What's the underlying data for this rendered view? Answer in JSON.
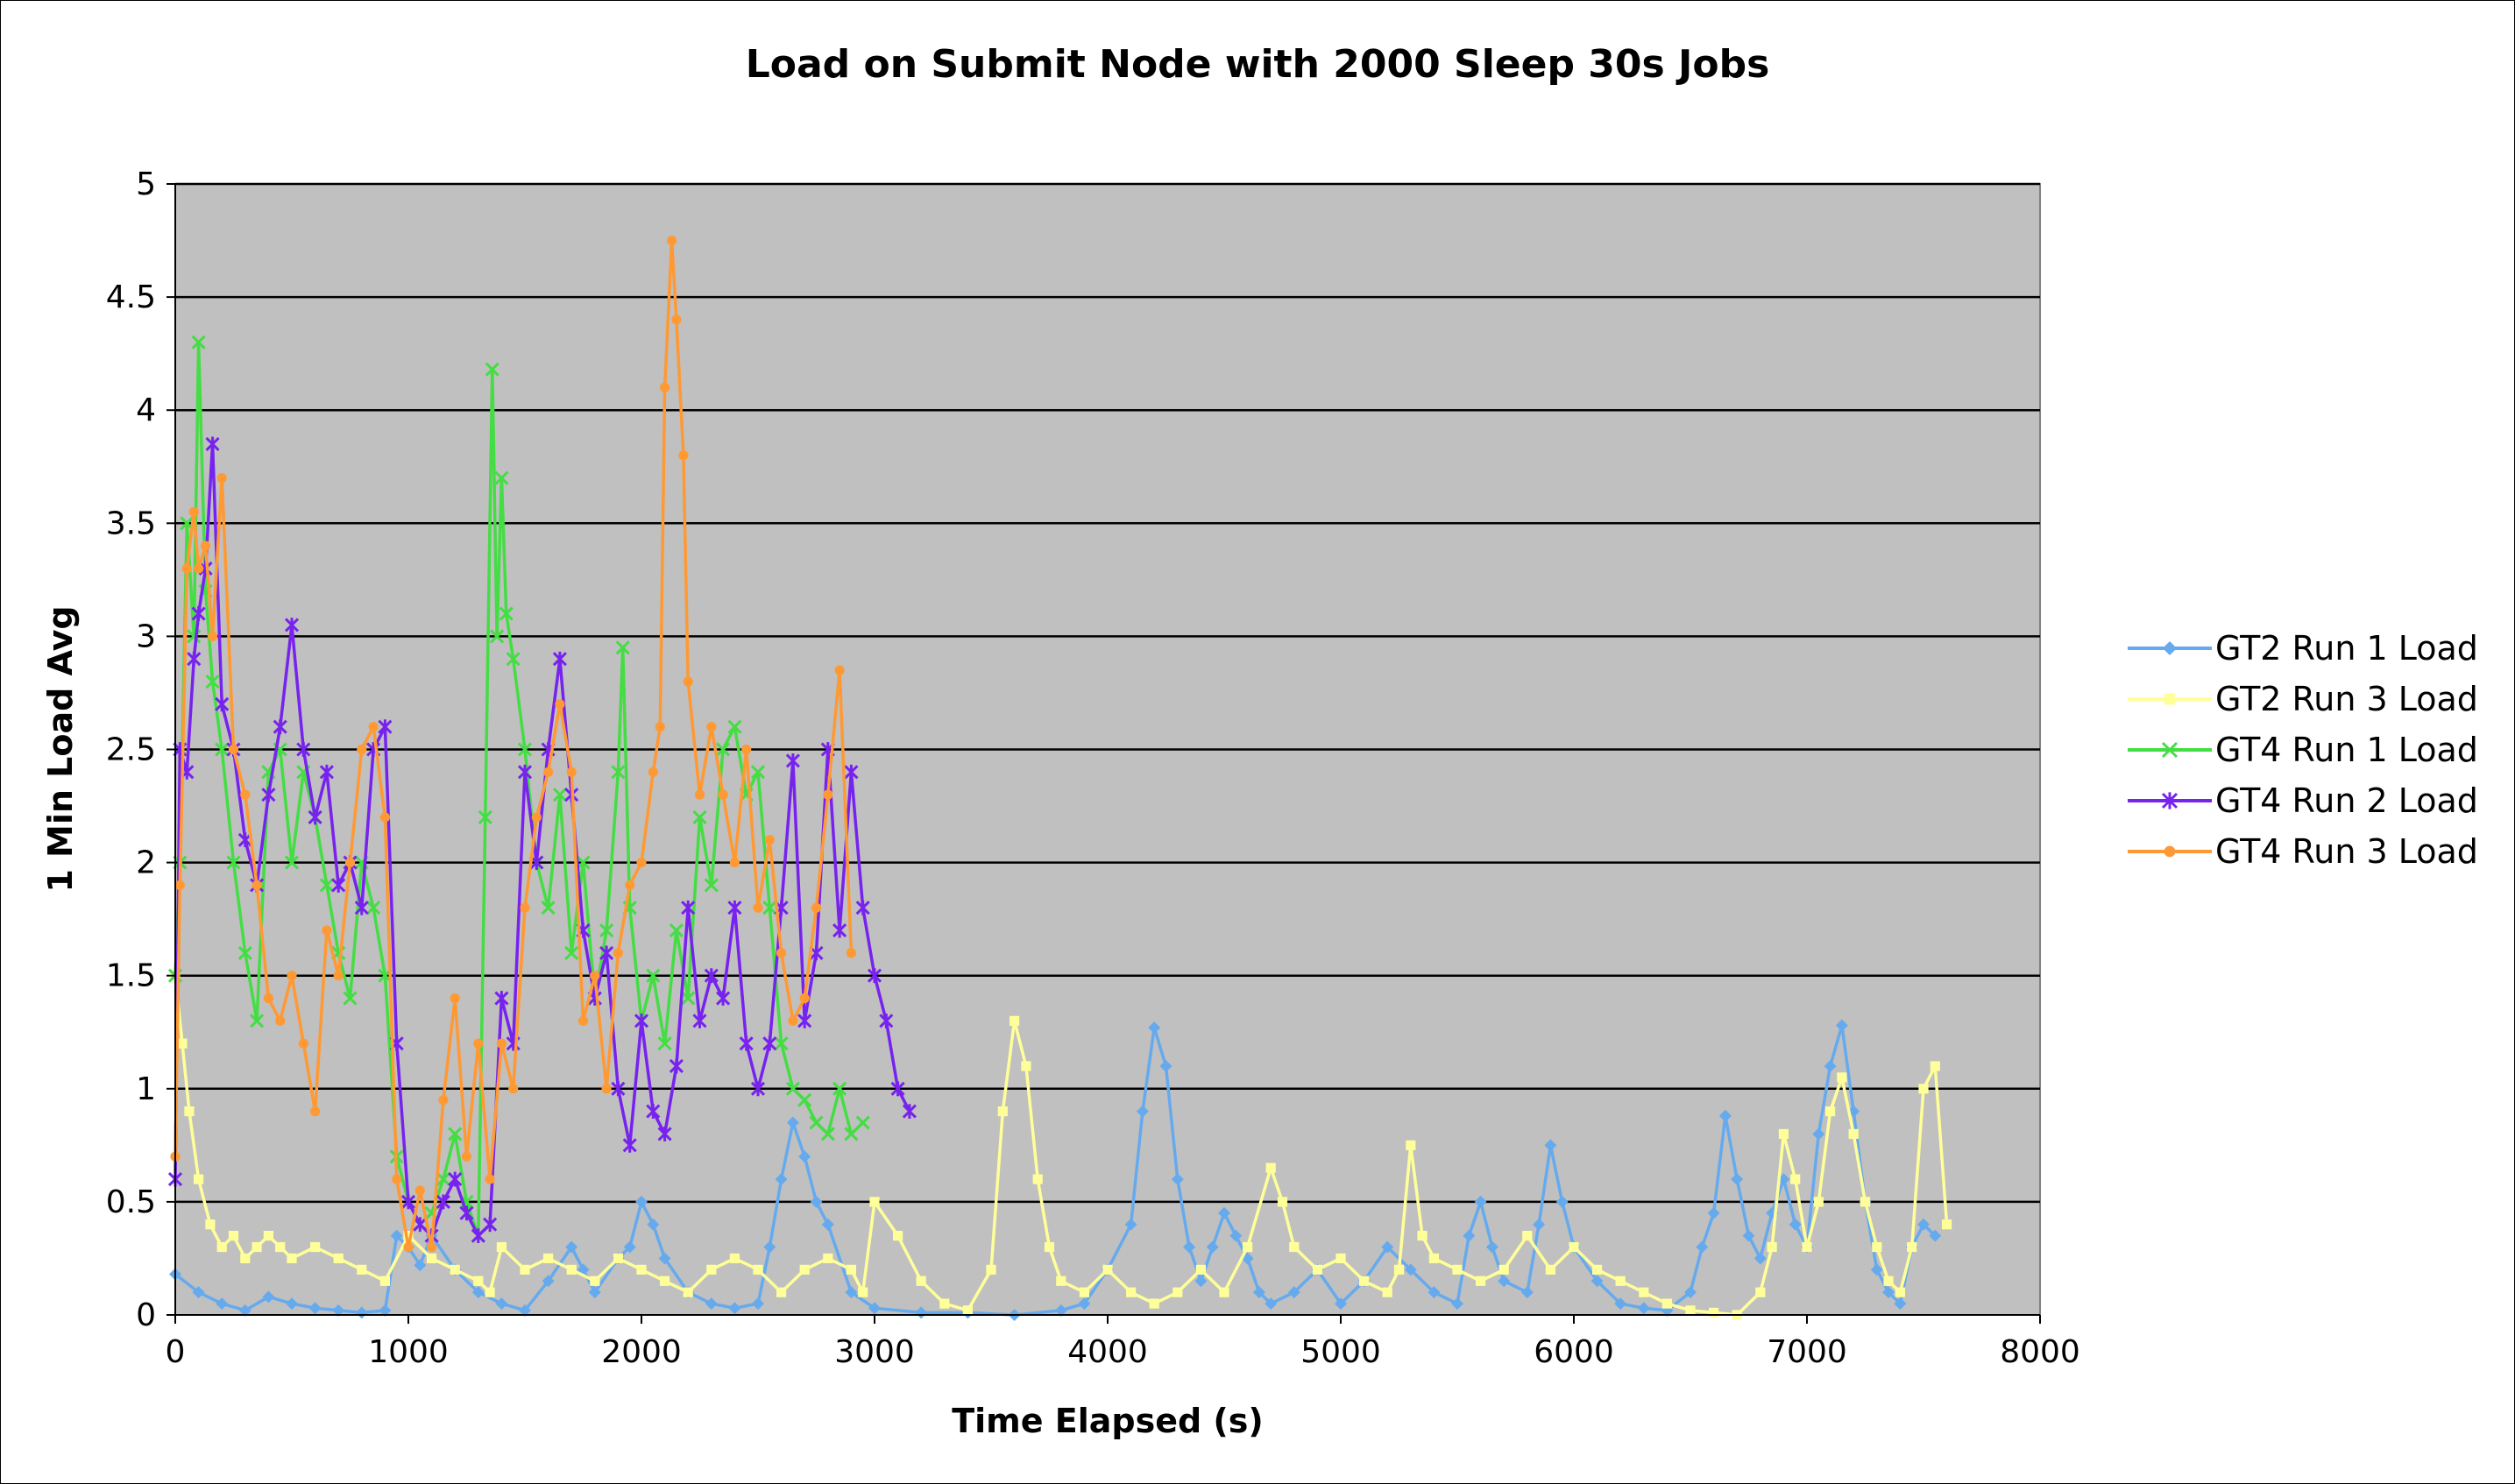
{
  "chart_data": {
    "type": "line",
    "title": "Load on Submit Node with 2000 Sleep 30s Jobs",
    "xlabel": "Time Elapsed (s)",
    "ylabel": "1 Min Load Avg",
    "xlim": [
      0,
      8000
    ],
    "ylim": [
      0,
      5
    ],
    "x_ticks": [
      "0",
      "1000",
      "2000",
      "3000",
      "4000",
      "5000",
      "6000",
      "7000",
      "8000"
    ],
    "y_ticks": [
      "0",
      "0.5",
      "1",
      "1.5",
      "2",
      "2.5",
      "3",
      "3.5",
      "4",
      "4.5",
      "5"
    ],
    "grid": "horizontal",
    "plot_background": "#c0c0c0",
    "legend_position": "right",
    "series": [
      {
        "name": "GT2 Run 1 Load",
        "color": "#66aaee",
        "marker": "diamond",
        "x": [
          0,
          100,
          200,
          300,
          400,
          500,
          600,
          700,
          800,
          900,
          950,
          1000,
          1050,
          1100,
          1200,
          1300,
          1400,
          1500,
          1600,
          1700,
          1750,
          1800,
          1900,
          1950,
          2000,
          2050,
          2100,
          2200,
          2300,
          2400,
          2500,
          2550,
          2600,
          2650,
          2700,
          2750,
          2800,
          2900,
          3000,
          3200,
          3400,
          3600,
          3800,
          3900,
          4000,
          4100,
          4150,
          4200,
          4250,
          4300,
          4350,
          4400,
          4450,
          4500,
          4550,
          4600,
          4650,
          4700,
          4800,
          4900,
          5000,
          5100,
          5200,
          5300,
          5400,
          5500,
          5550,
          5600,
          5650,
          5700,
          5800,
          5850,
          5900,
          5950,
          6000,
          6100,
          6200,
          6300,
          6400,
          6500,
          6550,
          6600,
          6650,
          6700,
          6750,
          6800,
          6850,
          6900,
          6950,
          7000,
          7050,
          7100,
          7150,
          7200,
          7250,
          7300,
          7350,
          7400,
          7450,
          7500,
          7550
        ],
        "y": [
          0.18,
          0.1,
          0.05,
          0.02,
          0.08,
          0.05,
          0.03,
          0.02,
          0.01,
          0.02,
          0.35,
          0.3,
          0.22,
          0.35,
          0.2,
          0.1,
          0.05,
          0.02,
          0.15,
          0.3,
          0.2,
          0.1,
          0.25,
          0.3,
          0.5,
          0.4,
          0.25,
          0.1,
          0.05,
          0.03,
          0.05,
          0.3,
          0.6,
          0.85,
          0.7,
          0.5,
          0.4,
          0.1,
          0.03,
          0.01,
          0.01,
          0.0,
          0.02,
          0.05,
          0.2,
          0.4,
          0.9,
          1.27,
          1.1,
          0.6,
          0.3,
          0.15,
          0.3,
          0.45,
          0.35,
          0.25,
          0.1,
          0.05,
          0.1,
          0.2,
          0.05,
          0.15,
          0.3,
          0.2,
          0.1,
          0.05,
          0.35,
          0.5,
          0.3,
          0.15,
          0.1,
          0.4,
          0.75,
          0.5,
          0.3,
          0.15,
          0.05,
          0.03,
          0.02,
          0.1,
          0.3,
          0.45,
          0.88,
          0.6,
          0.35,
          0.25,
          0.45,
          0.6,
          0.4,
          0.3,
          0.8,
          1.1,
          1.28,
          0.9,
          0.5,
          0.2,
          0.1,
          0.05,
          0.3,
          0.4,
          0.35
        ]
      },
      {
        "name": "GT2 Run 3 Load",
        "color": "#ffff99",
        "marker": "square",
        "x": [
          0,
          30,
          60,
          100,
          150,
          200,
          250,
          300,
          350,
          400,
          450,
          500,
          600,
          700,
          800,
          900,
          1000,
          1100,
          1200,
          1300,
          1350,
          1400,
          1500,
          1600,
          1700,
          1800,
          1900,
          2000,
          2100,
          2200,
          2300,
          2400,
          2500,
          2600,
          2700,
          2800,
          2900,
          2950,
          3000,
          3100,
          3200,
          3300,
          3400,
          3500,
          3550,
          3600,
          3650,
          3700,
          3750,
          3800,
          3900,
          4000,
          4100,
          4200,
          4300,
          4400,
          4500,
          4600,
          4700,
          4750,
          4800,
          4900,
          5000,
          5100,
          5200,
          5250,
          5300,
          5350,
          5400,
          5500,
          5600,
          5700,
          5800,
          5900,
          6000,
          6100,
          6200,
          6300,
          6400,
          6500,
          6600,
          6700,
          6800,
          6850,
          6900,
          6950,
          7000,
          7050,
          7100,
          7150,
          7200,
          7250,
          7300,
          7350,
          7400,
          7450,
          7500,
          7550,
          7600
        ],
        "y": [
          1.5,
          1.2,
          0.9,
          0.6,
          0.4,
          0.3,
          0.35,
          0.25,
          0.3,
          0.35,
          0.3,
          0.25,
          0.3,
          0.25,
          0.2,
          0.15,
          0.35,
          0.25,
          0.2,
          0.15,
          0.1,
          0.3,
          0.2,
          0.25,
          0.2,
          0.15,
          0.25,
          0.2,
          0.15,
          0.1,
          0.2,
          0.25,
          0.2,
          0.1,
          0.2,
          0.25,
          0.2,
          0.1,
          0.5,
          0.35,
          0.15,
          0.05,
          0.02,
          0.2,
          0.9,
          1.3,
          1.1,
          0.6,
          0.3,
          0.15,
          0.1,
          0.2,
          0.1,
          0.05,
          0.1,
          0.2,
          0.1,
          0.3,
          0.65,
          0.5,
          0.3,
          0.2,
          0.25,
          0.15,
          0.1,
          0.2,
          0.75,
          0.35,
          0.25,
          0.2,
          0.15,
          0.2,
          0.35,
          0.2,
          0.3,
          0.2,
          0.15,
          0.1,
          0.05,
          0.02,
          0.01,
          0.0,
          0.1,
          0.3,
          0.8,
          0.6,
          0.3,
          0.5,
          0.9,
          1.05,
          0.8,
          0.5,
          0.3,
          0.15,
          0.1,
          0.3,
          1.0,
          1.1,
          0.4
        ]
      },
      {
        "name": "GT4 Run 1 Load",
        "color": "#44dd44",
        "marker": "x",
        "x": [
          0,
          20,
          50,
          80,
          100,
          130,
          160,
          200,
          250,
          300,
          350,
          400,
          450,
          500,
          550,
          600,
          650,
          700,
          750,
          800,
          850,
          900,
          950,
          1000,
          1050,
          1100,
          1150,
          1200,
          1250,
          1300,
          1330,
          1360,
          1380,
          1400,
          1420,
          1450,
          1500,
          1550,
          1600,
          1650,
          1700,
          1750,
          1800,
          1850,
          1900,
          1920,
          1950,
          2000,
          2050,
          2100,
          2150,
          2200,
          2250,
          2300,
          2350,
          2400,
          2450,
          2500,
          2550,
          2600,
          2650,
          2700,
          2750,
          2800,
          2850,
          2900,
          2950
        ],
        "y": [
          1.5,
          2.0,
          3.5,
          3.0,
          4.3,
          3.2,
          2.8,
          2.5,
          2.0,
          1.6,
          1.3,
          2.4,
          2.5,
          2.0,
          2.4,
          2.2,
          1.9,
          1.6,
          1.4,
          2.0,
          1.8,
          1.5,
          0.7,
          0.5,
          0.4,
          0.45,
          0.6,
          0.8,
          0.5,
          0.35,
          2.2,
          4.18,
          3.0,
          3.7,
          3.1,
          2.9,
          2.5,
          2.0,
          1.8,
          2.3,
          1.6,
          2.0,
          1.4,
          1.7,
          2.4,
          2.95,
          1.8,
          1.3,
          1.5,
          1.2,
          1.7,
          1.4,
          2.2,
          1.9,
          2.5,
          2.6,
          2.3,
          2.4,
          1.8,
          1.2,
          1.0,
          0.95,
          0.85,
          0.8,
          1.0,
          0.8,
          0.85
        ]
      },
      {
        "name": "GT4 Run 2 Load",
        "color": "#7722ee",
        "marker": "star",
        "x": [
          0,
          20,
          50,
          80,
          100,
          130,
          160,
          200,
          250,
          300,
          350,
          400,
          450,
          500,
          550,
          600,
          650,
          700,
          750,
          800,
          850,
          900,
          950,
          1000,
          1050,
          1100,
          1150,
          1200,
          1250,
          1300,
          1350,
          1400,
          1450,
          1500,
          1550,
          1600,
          1650,
          1700,
          1750,
          1800,
          1850,
          1900,
          1950,
          2000,
          2050,
          2100,
          2150,
          2200,
          2250,
          2300,
          2350,
          2400,
          2450,
          2500,
          2550,
          2600,
          2650,
          2700,
          2750,
          2800,
          2850,
          2900,
          2950,
          3000,
          3050,
          3100,
          3150
        ],
        "y": [
          0.6,
          2.5,
          2.4,
          2.9,
          3.1,
          3.3,
          3.85,
          2.7,
          2.5,
          2.1,
          1.9,
          2.3,
          2.6,
          3.05,
          2.5,
          2.2,
          2.4,
          1.9,
          2.0,
          1.8,
          2.5,
          2.6,
          1.2,
          0.5,
          0.4,
          0.35,
          0.5,
          0.6,
          0.45,
          0.35,
          0.4,
          1.4,
          1.2,
          2.4,
          2.0,
          2.5,
          2.9,
          2.3,
          1.7,
          1.4,
          1.6,
          1.0,
          0.75,
          1.3,
          0.9,
          0.8,
          1.1,
          1.8,
          1.3,
          1.5,
          1.4,
          1.8,
          1.2,
          1.0,
          1.2,
          1.8,
          2.45,
          1.3,
          1.6,
          2.5,
          1.7,
          2.4,
          1.8,
          1.5,
          1.3,
          1.0,
          0.9
        ]
      },
      {
        "name": "GT4 Run 3 Load",
        "color": "#ff9933",
        "marker": "circle",
        "x": [
          0,
          20,
          50,
          80,
          100,
          130,
          160,
          200,
          250,
          300,
          350,
          400,
          450,
          500,
          550,
          600,
          650,
          700,
          750,
          800,
          850,
          900,
          950,
          1000,
          1050,
          1100,
          1150,
          1200,
          1250,
          1300,
          1350,
          1400,
          1450,
          1500,
          1550,
          1600,
          1650,
          1700,
          1750,
          1800,
          1850,
          1900,
          1950,
          2000,
          2050,
          2080,
          2100,
          2130,
          2150,
          2180,
          2200,
          2250,
          2300,
          2350,
          2400,
          2450,
          2500,
          2550,
          2600,
          2650,
          2700,
          2750,
          2800,
          2850,
          2900
        ],
        "y": [
          0.7,
          1.9,
          3.3,
          3.55,
          3.3,
          3.4,
          3.0,
          3.7,
          2.5,
          2.3,
          1.9,
          1.4,
          1.3,
          1.5,
          1.2,
          0.9,
          1.7,
          1.5,
          2.0,
          2.5,
          2.6,
          2.2,
          0.6,
          0.3,
          0.55,
          0.3,
          0.95,
          1.4,
          0.7,
          1.2,
          0.6,
          1.2,
          1.0,
          1.8,
          2.2,
          2.4,
          2.7,
          2.4,
          1.3,
          1.5,
          1.0,
          1.6,
          1.9,
          2.0,
          2.4,
          2.6,
          4.1,
          4.75,
          4.4,
          3.8,
          2.8,
          2.3,
          2.6,
          2.3,
          2.0,
          2.5,
          1.8,
          2.1,
          1.6,
          1.3,
          1.4,
          1.8,
          2.3,
          2.85,
          1.6
        ]
      }
    ]
  }
}
